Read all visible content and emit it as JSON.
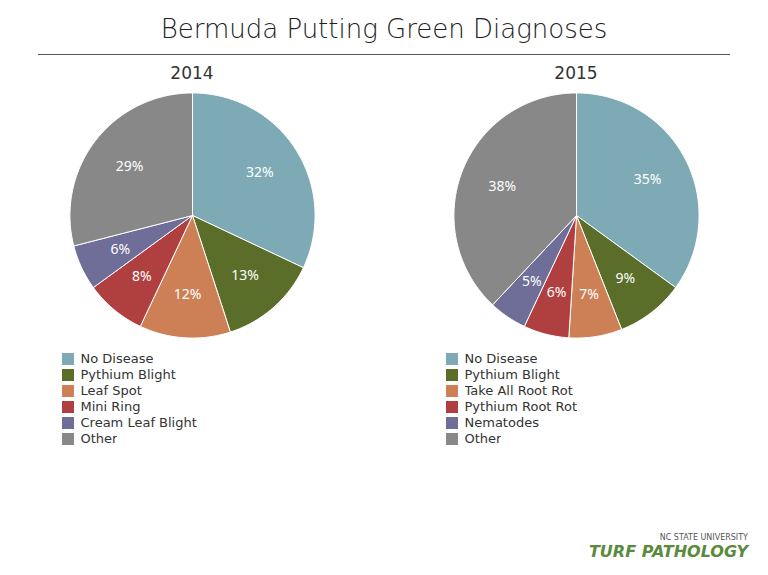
{
  "title": "Bermuda Putting Green Diagnoses",
  "annotations": [
    "NC STATE UNIVERSITY",
    "TURF PATHOLOGY"
  ],
  "chart_data": [
    {
      "type": "pie",
      "title": "2014",
      "categories": [
        "No Disease",
        "Pythium Blight",
        "Leaf Spot",
        "Mini Ring",
        "Cream Leaf Blight",
        "Other"
      ],
      "values": [
        32,
        13,
        12,
        8,
        6,
        29
      ],
      "value_labels": [
        "32%",
        "13%",
        "12%",
        "8%",
        "6%",
        "29%"
      ],
      "colors": [
        "#7daab5",
        "#5a6e2a",
        "#cd8055",
        "#b04040",
        "#6e6e99",
        "#888888"
      ],
      "data_labels": true,
      "legend": "bottom"
    },
    {
      "type": "pie",
      "title": "2015",
      "categories": [
        "No Disease",
        "Pythium Blight",
        "Take All Root Rot",
        "Pythium Root Rot",
        "Nematodes",
        "Other"
      ],
      "values": [
        35,
        9,
        7,
        6,
        5,
        38
      ],
      "value_labels": [
        "35%",
        "9%",
        "7%",
        "6%",
        "5%",
        "38%"
      ],
      "colors": [
        "#7daab5",
        "#5a6e2a",
        "#cd8055",
        "#b04040",
        "#6e6e99",
        "#888888"
      ],
      "data_labels": true,
      "legend": "bottom"
    }
  ]
}
